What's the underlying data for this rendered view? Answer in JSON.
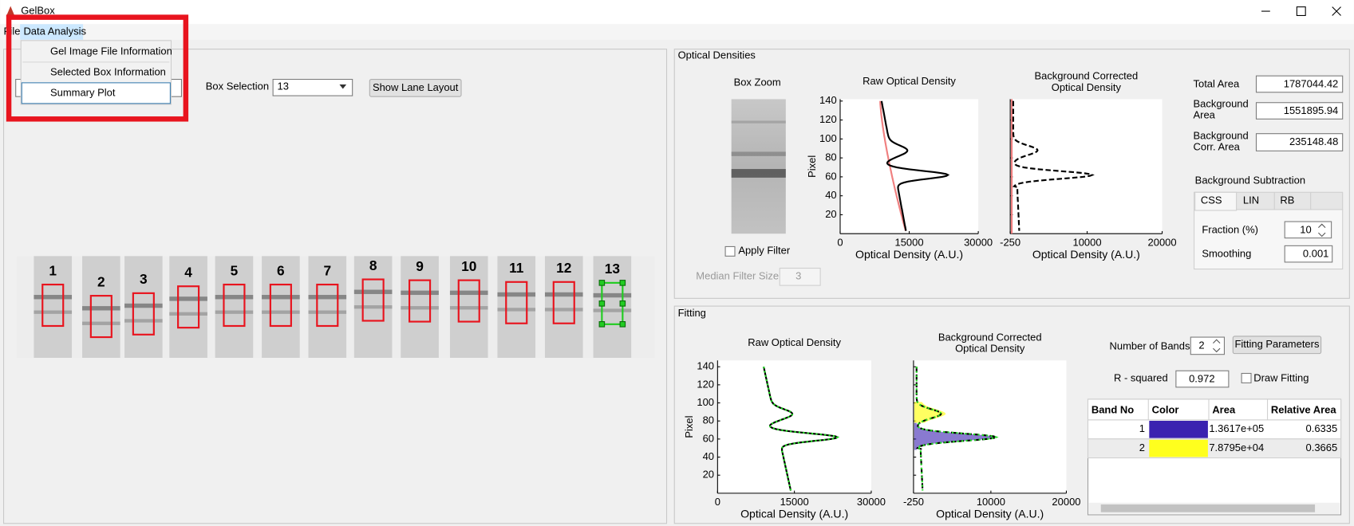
{
  "window": {
    "title": "GelBox"
  },
  "menu": {
    "items": [
      "File",
      "Data Analysis"
    ],
    "dropdown": [
      "Gel Image File Information",
      "Selected Box Information",
      "Summary Plot"
    ]
  },
  "gel_panel": {
    "box_selection_label": "Box Selection",
    "box_selection_value": "13",
    "show_lane_layout": "Show Lane Layout",
    "lanes": [
      "1",
      "2",
      "3",
      "4",
      "5",
      "6",
      "7",
      "8",
      "9",
      "10",
      "11",
      "12",
      "13"
    ]
  },
  "optical_densities": {
    "title": "Optical Densities",
    "box_zoom": "Box Zoom",
    "apply_filter": "Apply Filter",
    "median_filter_size": "Median Filter Size",
    "median_filter_value": "3",
    "raw_plot": {
      "title": [
        "Raw Optical Density"
      ],
      "xlabel": "Optical Density (A.U.)",
      "ylabel": "Pixel",
      "xlim": [
        0,
        30000
      ],
      "xticks": [
        0,
        15000,
        30000
      ],
      "ylim": [
        0,
        142
      ],
      "yticks": [
        20,
        40,
        60,
        80,
        100,
        120,
        140
      ]
    },
    "corrected_plot": {
      "title": [
        "Background Corrected",
        "Optical Density"
      ],
      "xlabel": "Optical Density (A.U.)",
      "xlim": [
        -250,
        20000
      ],
      "xticks": [
        -250,
        10000,
        20000
      ],
      "ylim": [
        0,
        142
      ],
      "yticks": [
        20,
        40,
        60,
        80,
        100,
        120,
        140
      ]
    },
    "total_area_label": [
      "Total Area"
    ],
    "total_area": "1787044.42",
    "background_area_label": [
      "Background",
      "Area"
    ],
    "background_area": "1551895.94",
    "background_corr_area_label": [
      "Background",
      "Corr. Area"
    ],
    "background_corr_area": "235148.48",
    "background_subtraction": "Background Subtraction",
    "tabs": [
      "CSS",
      "LIN",
      "RB"
    ],
    "fraction_label": "Fraction (%)",
    "fraction": "10",
    "smoothing_label": "Smoothing",
    "smoothing": "0.001"
  },
  "fitting": {
    "title": "Fitting",
    "raw_plot": {
      "title": [
        "Raw Optical Density"
      ],
      "xlabel": "Optical Density (A.U.)",
      "ylabel": "Pixel",
      "xlim": [
        0,
        30000
      ],
      "xticks": [
        0,
        15000,
        30000
      ],
      "ylim": [
        0,
        147
      ],
      "yticks": [
        20,
        40,
        60,
        80,
        100,
        120,
        140
      ]
    },
    "corrected_plot": {
      "title": [
        "Background Corrected",
        "Optical Density"
      ],
      "xlabel": "Optical Density (A.U.)",
      "xlim": [
        -250,
        20000
      ],
      "xticks": [
        -250,
        10000,
        20000
      ],
      "ylim": [
        0,
        147
      ],
      "yticks": [
        20,
        40,
        60,
        80,
        100,
        120,
        140
      ]
    },
    "number_of_bands_label": "Number of Bands",
    "number_of_bands": "2",
    "fitting_parameters": "Fitting Parameters",
    "r_squared_label": "R - squared",
    "r_squared": "0.972",
    "draw_fitting": "Draw Fitting",
    "table": {
      "columns": [
        "Band No",
        "Color",
        "Area",
        "Relative Area"
      ],
      "rows": [
        {
          "band_no": "1",
          "color": "#3a22b0",
          "area": "1.3617e+05",
          "relative_area": "0.6335"
        },
        {
          "band_no": "2",
          "color": "#ffff1e",
          "area": "7.8795e+04",
          "relative_area": "0.3665"
        }
      ]
    }
  }
}
